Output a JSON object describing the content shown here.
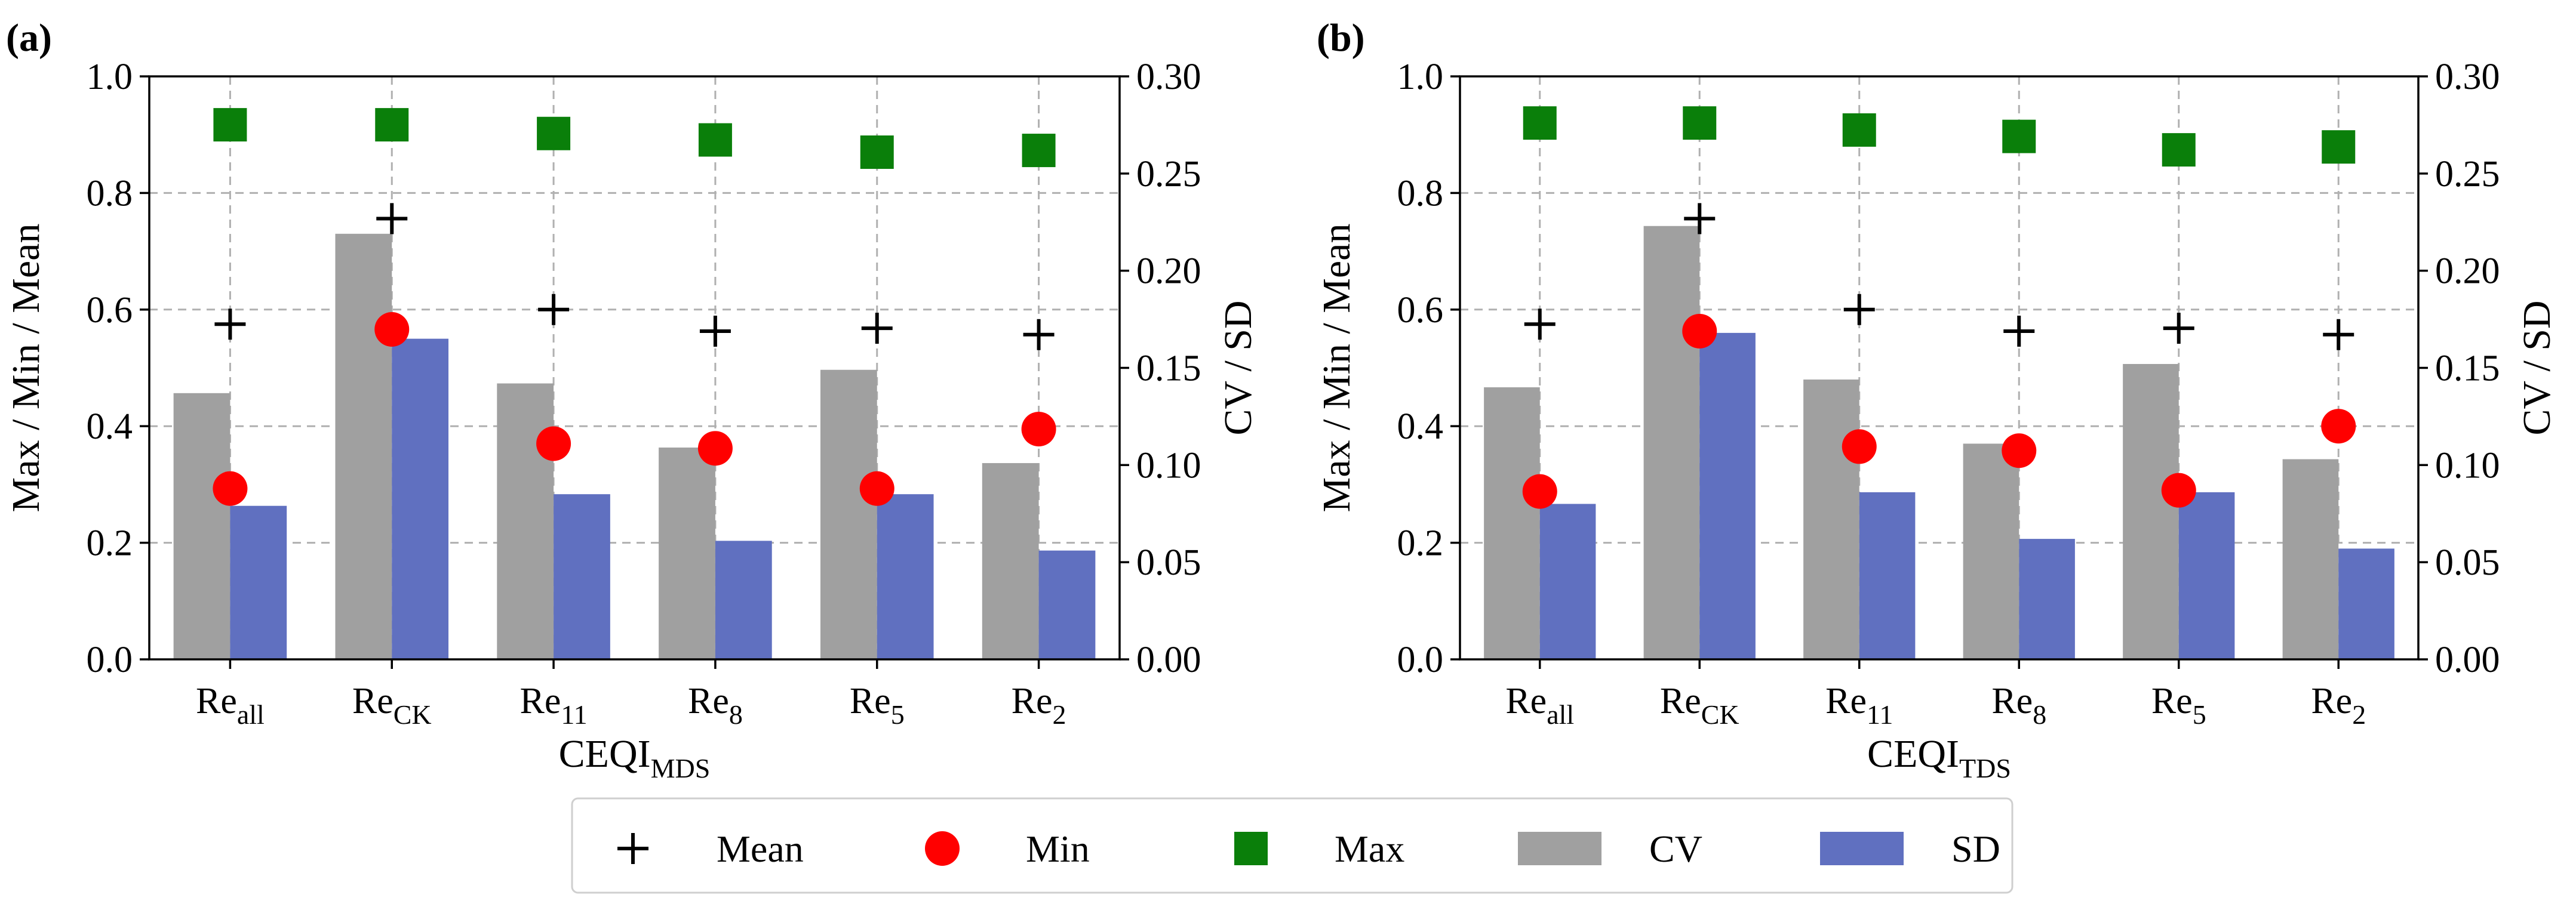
{
  "colors": {
    "cv": "#a0a0a0",
    "sd": "#6070c0",
    "min": "#ff0000",
    "max": "#0a7f0a",
    "mean": "#000000"
  },
  "chart_data": [
    {
      "type": "bar",
      "panel_label": "(a)",
      "xlabel_main": "CEQI",
      "xlabel_sub": "MDS",
      "ylabel_left": "Max / Min / Mean",
      "ylabel_right": "CV / SD",
      "ylim_left": [
        0,
        1.0
      ],
      "ylim_right": [
        0,
        0.3
      ],
      "yticks_left": [
        "0.0",
        "0.2",
        "0.4",
        "0.6",
        "0.8",
        "1.0"
      ],
      "yticks_right": [
        "0.00",
        "0.05",
        "0.10",
        "0.15",
        "0.20",
        "0.25",
        "0.30"
      ],
      "grid": true,
      "categories": [
        {
          "main": "Re",
          "sub": "all"
        },
        {
          "main": "Re",
          "sub": "CK"
        },
        {
          "main": "Re",
          "sub": "11"
        },
        {
          "main": "Re",
          "sub": "8"
        },
        {
          "main": "Re",
          "sub": "5"
        },
        {
          "main": "Re",
          "sub": "2"
        }
      ],
      "series": [
        {
          "name": "CV",
          "axis": "right",
          "kind": "bar",
          "values": [
            0.137,
            0.219,
            0.142,
            0.109,
            0.149,
            0.101
          ]
        },
        {
          "name": "SD",
          "axis": "right",
          "kind": "bar",
          "values": [
            0.079,
            0.165,
            0.085,
            0.061,
            0.085,
            0.056
          ]
        },
        {
          "name": "Mean",
          "axis": "left",
          "kind": "marker",
          "values": [
            0.575,
            0.756,
            0.6,
            0.563,
            0.568,
            0.557
          ]
        },
        {
          "name": "Min",
          "axis": "left",
          "kind": "marker",
          "values": [
            0.293,
            0.566,
            0.37,
            0.362,
            0.293,
            0.395
          ]
        },
        {
          "name": "Max",
          "axis": "left",
          "kind": "marker",
          "values": [
            0.917,
            0.917,
            0.902,
            0.891,
            0.87,
            0.873
          ]
        }
      ]
    },
    {
      "type": "bar",
      "panel_label": "(b)",
      "xlabel_main": "CEQI",
      "xlabel_sub": "TDS",
      "ylabel_left": "Max / Min / Mean",
      "ylabel_right": "CV / SD",
      "ylim_left": [
        0,
        1.0
      ],
      "ylim_right": [
        0,
        0.3
      ],
      "yticks_left": [
        "0.0",
        "0.2",
        "0.4",
        "0.6",
        "0.8",
        "1.0"
      ],
      "yticks_right": [
        "0.00",
        "0.05",
        "0.10",
        "0.15",
        "0.20",
        "0.25",
        "0.30"
      ],
      "grid": true,
      "categories": [
        {
          "main": "Re",
          "sub": "all"
        },
        {
          "main": "Re",
          "sub": "CK"
        },
        {
          "main": "Re",
          "sub": "11"
        },
        {
          "main": "Re",
          "sub": "8"
        },
        {
          "main": "Re",
          "sub": "5"
        },
        {
          "main": "Re",
          "sub": "2"
        }
      ],
      "series": [
        {
          "name": "CV",
          "axis": "right",
          "kind": "bar",
          "values": [
            0.14,
            0.223,
            0.144,
            0.111,
            0.152,
            0.103
          ]
        },
        {
          "name": "SD",
          "axis": "right",
          "kind": "bar",
          "values": [
            0.08,
            0.168,
            0.086,
            0.062,
            0.086,
            0.057
          ]
        },
        {
          "name": "Mean",
          "axis": "left",
          "kind": "marker",
          "values": [
            0.575,
            0.756,
            0.6,
            0.563,
            0.568,
            0.557
          ]
        },
        {
          "name": "Min",
          "axis": "left",
          "kind": "marker",
          "values": [
            0.288,
            0.563,
            0.365,
            0.358,
            0.29,
            0.4
          ]
        },
        {
          "name": "Max",
          "axis": "left",
          "kind": "marker",
          "values": [
            0.92,
            0.92,
            0.908,
            0.897,
            0.874,
            0.879
          ]
        }
      ]
    }
  ],
  "legend": {
    "items": [
      {
        "label": "Mean",
        "symbol": "plus"
      },
      {
        "label": "Min",
        "symbol": "circle"
      },
      {
        "label": "Max",
        "symbol": "square"
      },
      {
        "label": "CV",
        "symbol": "bar"
      },
      {
        "label": "SD",
        "symbol": "bar"
      }
    ]
  }
}
